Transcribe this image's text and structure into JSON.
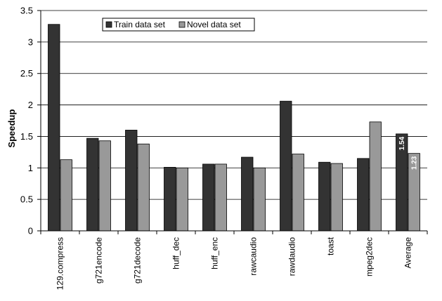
{
  "chart_data": {
    "type": "bar",
    "title": "",
    "xlabel": "",
    "ylabel": "Speedup",
    "ylim": [
      0,
      3.5
    ],
    "yticks": [
      0,
      0.5,
      1,
      1.5,
      2,
      2.5,
      3,
      3.5
    ],
    "ytick_labels": [
      "0",
      "0.5",
      "1",
      "1.5",
      "2",
      "2.5",
      "3",
      "3.5"
    ],
    "grid": "horizontal",
    "legend_position": "top",
    "categories": [
      "129.compress",
      "g721encode",
      "g721decode",
      "huff_dec",
      "huff_enc",
      "rawcaudio",
      "rawdaudio",
      "toast",
      "mpeg2dec",
      "Average"
    ],
    "series": [
      {
        "name": "Train data set",
        "color": "#333333",
        "values": [
          3.28,
          1.47,
          1.6,
          1.01,
          1.06,
          1.17,
          2.06,
          1.09,
          1.15,
          1.54
        ]
      },
      {
        "name": "Novel data set",
        "color": "#999999",
        "values": [
          1.13,
          1.43,
          1.38,
          1.0,
          1.06,
          1.0,
          1.22,
          1.07,
          1.73,
          1.23
        ]
      }
    ],
    "annotations": [
      {
        "category": "Average",
        "series": 0,
        "text": "1.54"
      },
      {
        "category": "Average",
        "series": 1,
        "text": "1.23"
      }
    ]
  }
}
